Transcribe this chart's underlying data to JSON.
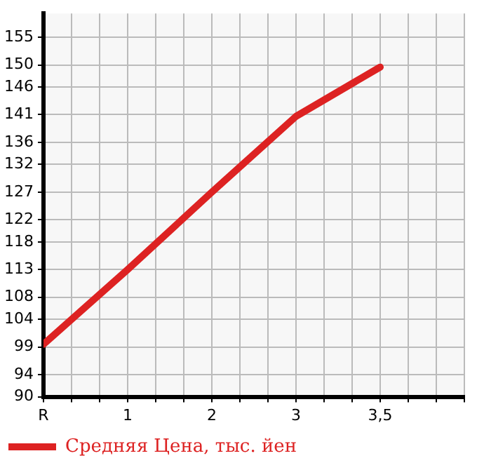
{
  "chart_data": {
    "type": "line",
    "categories": [
      "R",
      "1",
      "2",
      "3",
      "3,5"
    ],
    "series": [
      {
        "name": "Средняя Цена, тыс. йен",
        "color": "#dd2222",
        "values": [
          99.5,
          113,
          127,
          140.7,
          149.6
        ]
      }
    ],
    "ylim": [
      90,
      159.3
    ],
    "yticks": [
      90,
      94,
      99,
      104,
      108,
      113,
      118,
      122,
      127,
      132,
      136,
      141,
      146,
      150,
      155
    ],
    "grid": true,
    "legend": "bottom left",
    "marker": "none",
    "line_style": "solid"
  }
}
